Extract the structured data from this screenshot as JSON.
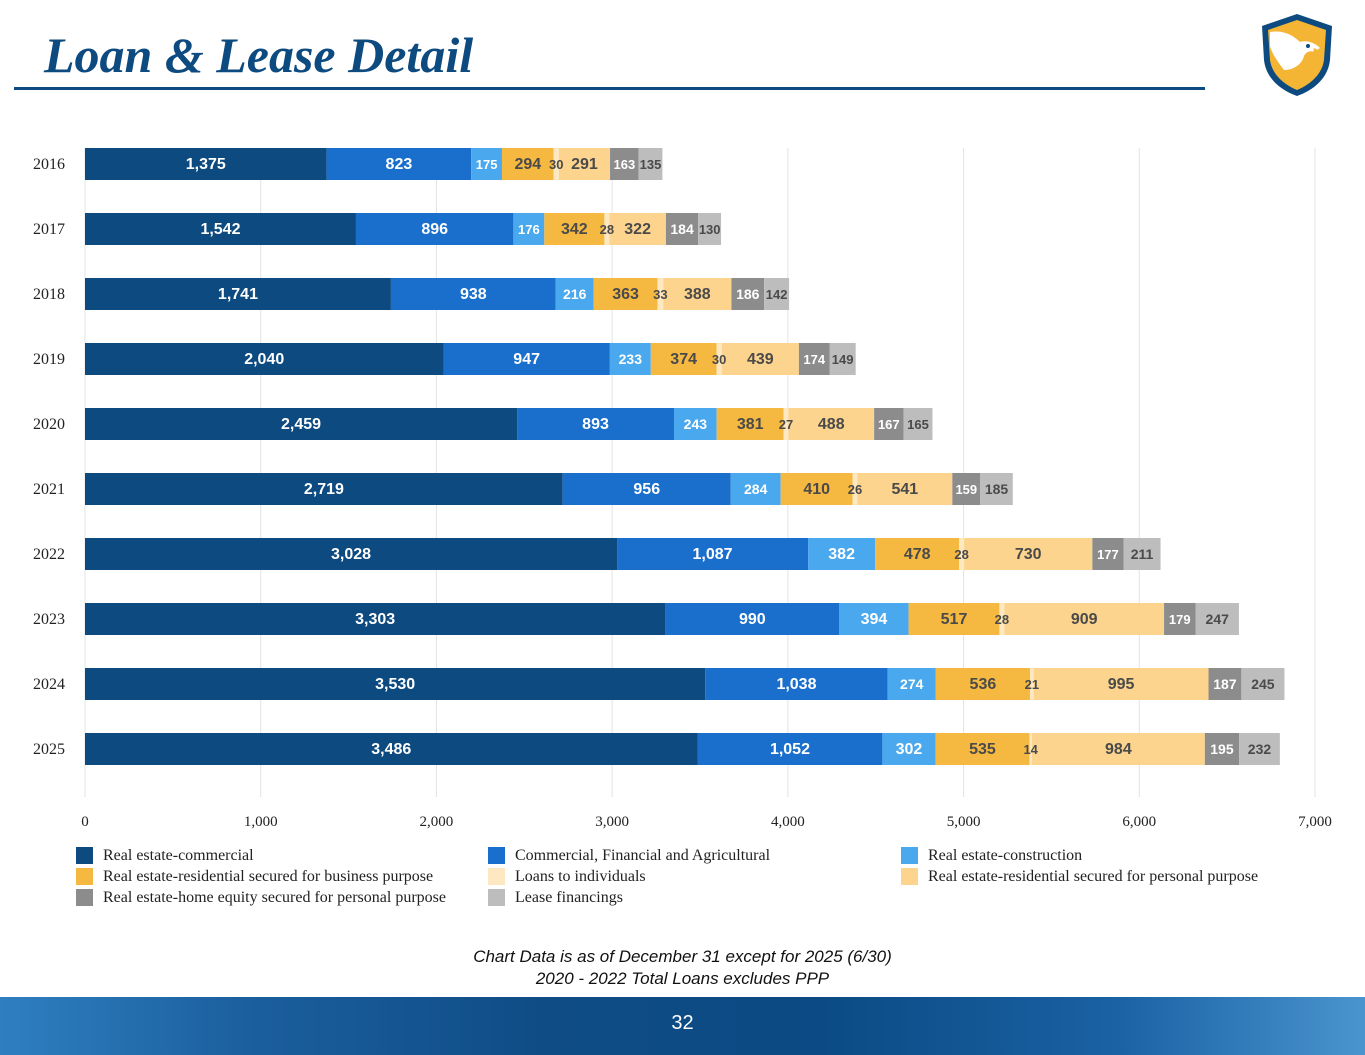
{
  "slide": {
    "title": "Loan & Lease Detail",
    "page_number": "32",
    "footnote_line1": "Chart Data is as of December 31 except for 2025 (6/30)",
    "footnote_line2": "2020 - 2022 Total Loans excludes PPP"
  },
  "colors": {
    "title": "#0c4a80",
    "grid": "#e3e3e3"
  },
  "chart_data": {
    "type": "bar",
    "orientation": "horizontal",
    "stacked": true,
    "title": "",
    "xlabel": "",
    "ylabel": "",
    "xlim": [
      0,
      7000
    ],
    "x_ticks": [
      0,
      1000,
      2000,
      3000,
      4000,
      5000,
      6000,
      7000
    ],
    "x_tick_labels": [
      "0",
      "1,000",
      "2,000",
      "3,000",
      "4,000",
      "5,000",
      "6,000",
      "7,000"
    ],
    "grid": true,
    "legend_position": "bottom",
    "categories": [
      "2016",
      "2017",
      "2018",
      "2019",
      "2020",
      "2021",
      "2022",
      "2023",
      "2024",
      "2025"
    ],
    "series": [
      {
        "name": "Real estate-commercial",
        "color": "#0c4a80",
        "label_color": "#ffffff",
        "values": [
          1375,
          1542,
          1741,
          2040,
          2459,
          2719,
          3028,
          3303,
          3530,
          3486
        ],
        "labels": [
          "1,375",
          "1,542",
          "1,741",
          "2,040",
          "2,459",
          "2,719",
          "3,028",
          "3,303",
          "3,530",
          "3,486"
        ]
      },
      {
        "name": "Commercial, Financial and Agricultural",
        "color": "#1a6fcd",
        "label_color": "#ffffff",
        "values": [
          823,
          896,
          938,
          947,
          893,
          956,
          1087,
          990,
          1038,
          1052
        ],
        "labels": [
          "823",
          "896",
          "938",
          "947",
          "893",
          "956",
          "1,087",
          "990",
          "1,038",
          "1,052"
        ]
      },
      {
        "name": "Real estate-construction",
        "color": "#4aa8ee",
        "label_color": "#ffffff",
        "values": [
          175,
          176,
          216,
          233,
          243,
          284,
          382,
          394,
          274,
          302
        ],
        "labels": [
          "175",
          "176",
          "216",
          "233",
          "243",
          "284",
          "382",
          "394",
          "274",
          "302"
        ]
      },
      {
        "name": "Real estate-residential secured for business purpose",
        "color": "#f5b942",
        "label_color": "#4a4a4a",
        "values": [
          294,
          342,
          363,
          374,
          381,
          410,
          478,
          517,
          536,
          535
        ],
        "labels": [
          "294",
          "342",
          "363",
          "374",
          "381",
          "410",
          "478",
          "517",
          "536",
          "535"
        ]
      },
      {
        "name": "Loans to individuals",
        "color": "#fde8c2",
        "label_color": "#4a4a4a",
        "values": [
          30,
          28,
          33,
          30,
          27,
          26,
          28,
          28,
          21,
          14
        ],
        "labels": [
          "30",
          "28",
          "33",
          "30",
          "27",
          "26",
          "28",
          "28",
          "21",
          "14"
        ]
      },
      {
        "name": "Real estate-residential secured for personal purpose",
        "color": "#fcd48e",
        "label_color": "#4a4a4a",
        "values": [
          291,
          322,
          388,
          439,
          488,
          541,
          730,
          909,
          995,
          984
        ],
        "labels": [
          "291",
          "322",
          "388",
          "439",
          "488",
          "541",
          "730",
          "909",
          "995",
          "984"
        ]
      },
      {
        "name": "Real estate-home equity secured for personal purpose",
        "color": "#8c8c8c",
        "label_color": "#ffffff",
        "values": [
          163,
          184,
          186,
          174,
          167,
          159,
          177,
          179,
          187,
          195
        ],
        "labels": [
          "163",
          "184",
          "186",
          "174",
          "167",
          "159",
          "177",
          "179",
          "187",
          "195"
        ]
      },
      {
        "name": "Lease financings",
        "color": "#bdbdbd",
        "label_color": "#4a4a4a",
        "values": [
          135,
          130,
          142,
          149,
          165,
          185,
          211,
          247,
          245,
          232
        ],
        "labels": [
          "135",
          "130",
          "142",
          "149",
          "165",
          "185",
          "211",
          "247",
          "245",
          "232"
        ]
      }
    ]
  }
}
